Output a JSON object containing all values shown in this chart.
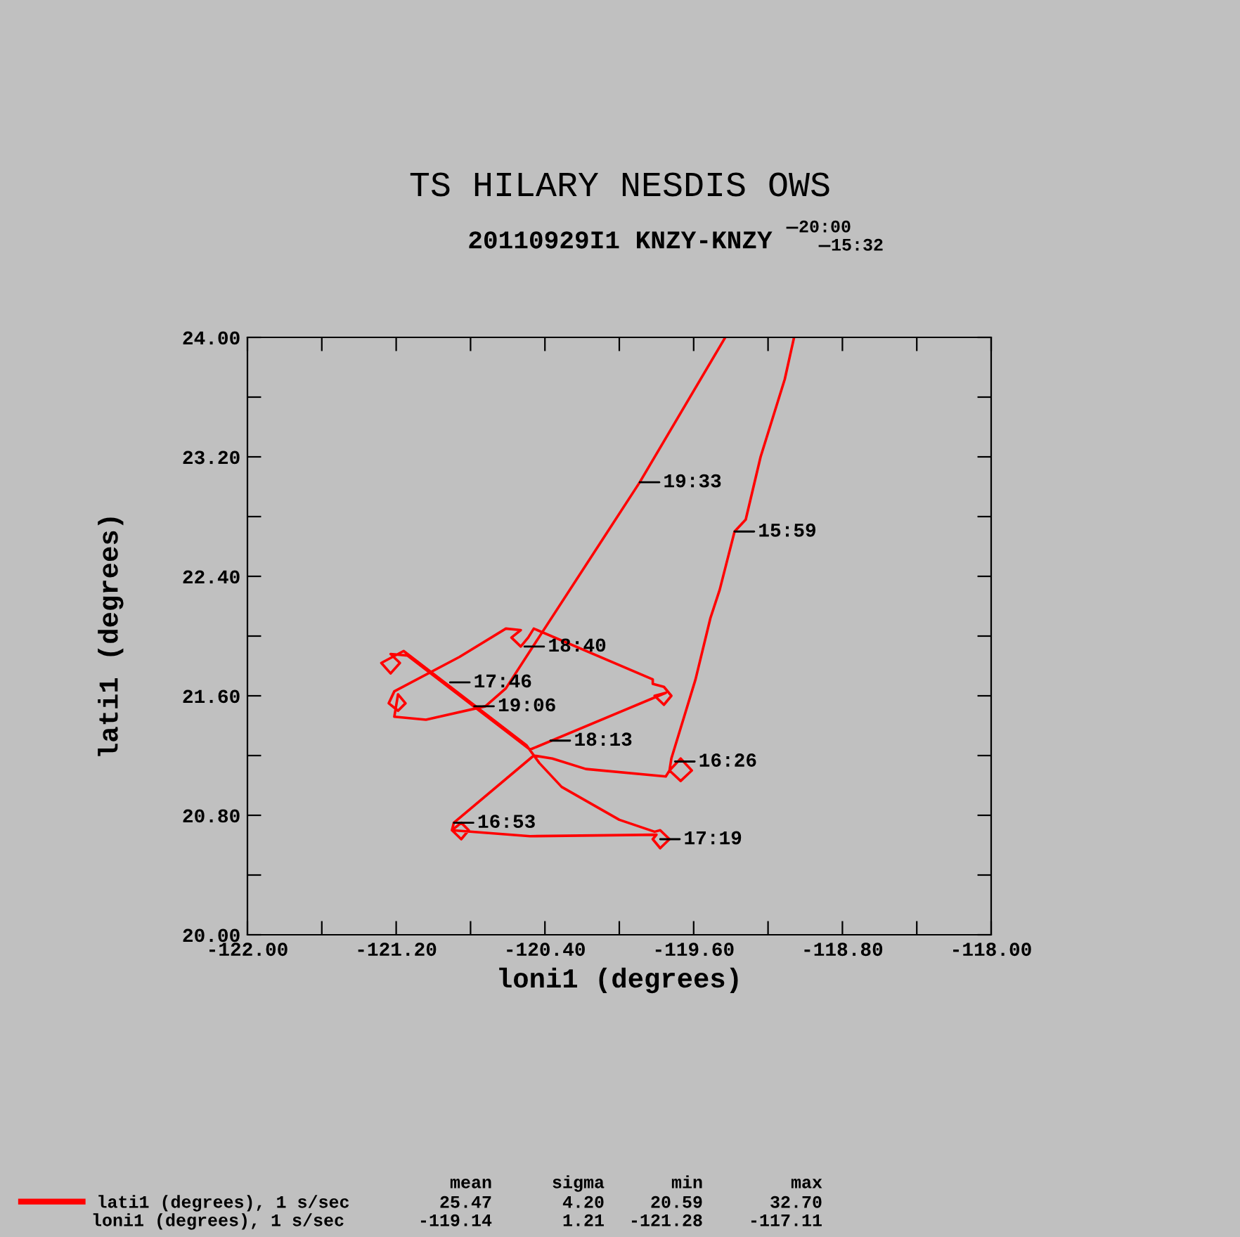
{
  "chart_data": {
    "type": "line",
    "title": "TS HILARY NESDIS OWS",
    "subtitle": "20110929I1 KNZY-KNZY",
    "xlabel": "loni1 (degrees)",
    "ylabel": "lati1 (degrees)",
    "xlim": [
      -122,
      -118
    ],
    "ylim": [
      20,
      24
    ],
    "xticks": [
      {
        "value": -122,
        "label": "-122.00"
      },
      {
        "value": -121.6,
        "label": null
      },
      {
        "value": -121.2,
        "label": "-121.20"
      },
      {
        "value": -120.8,
        "label": null
      },
      {
        "value": -120.4,
        "label": "-120.40"
      },
      {
        "value": -120.0,
        "label": null
      },
      {
        "value": -119.6,
        "label": "-119.60"
      },
      {
        "value": -119.2,
        "label": null
      },
      {
        "value": -118.8,
        "label": "-118.80"
      },
      {
        "value": -118.4,
        "label": null
      },
      {
        "value": -118,
        "label": "-118.00"
      }
    ],
    "yticks": [
      {
        "value": 20,
        "label": "20.00"
      },
      {
        "value": 20.4,
        "label": null
      },
      {
        "value": 20.8,
        "label": "20.80"
      },
      {
        "value": 21.2,
        "label": null
      },
      {
        "value": 21.6,
        "label": "21.60"
      },
      {
        "value": 22.0,
        "label": null
      },
      {
        "value": 22.4,
        "label": "22.40"
      },
      {
        "value": 22.8,
        "label": null
      },
      {
        "value": 23.2,
        "label": "23.20"
      },
      {
        "value": 23.6,
        "label": null
      },
      {
        "value": 24,
        "label": "24.00"
      }
    ],
    "grid": false,
    "legend": "bottom left",
    "marker": "none",
    "line_style": "solid",
    "series": [
      {
        "name": "lati1 (degrees), 1 s/sec",
        "color": "#ff0000",
        "x": [
          -119.06,
          -119.11,
          -119.24,
          -119.32,
          -119.38,
          -119.46,
          -119.51,
          -119.59,
          -119.72,
          -119.73,
          -119.67,
          -119.61,
          -119.67,
          -119.73,
          -119.75,
          -120.18,
          -120.36,
          -120.46,
          -120.89,
          -120.9,
          -120.85,
          -120.81,
          -120.85,
          -120.9,
          -120.48,
          -119.8,
          -119.82,
          -119.78,
          -119.73,
          -119.78,
          -119.81,
          -120.0,
          -120.31,
          -120.43,
          -120.5,
          -121.16,
          -121.28,
          -121.23,
          -121.18,
          -121.23,
          -121.14,
          -120.48,
          -119.75,
          -119.81,
          -119.76,
          -119.72,
          -119.76,
          -119.82,
          -119.82,
          -120.46,
          -120.49,
          -120.53,
          -120.58,
          -120.53,
          -120.61,
          -120.86,
          -121.21,
          -121.24,
          -121.19,
          -121.15,
          -121.19,
          -121.21,
          -121.04,
          -120.72,
          -120.61,
          -120.48,
          -119.89,
          -119.43
        ],
        "values": [
          24.0,
          23.72,
          23.2,
          22.78,
          22.7,
          22.31,
          22.12,
          21.71,
          21.18,
          21.1,
          21.03,
          21.1,
          21.18,
          21.1,
          21.06,
          21.11,
          21.18,
          21.2,
          20.75,
          20.7,
          20.64,
          20.7,
          20.75,
          20.7,
          20.66,
          20.67,
          20.64,
          20.58,
          20.64,
          20.7,
          20.69,
          20.77,
          20.99,
          21.15,
          21.27,
          21.9,
          21.82,
          21.75,
          21.82,
          21.88,
          21.87,
          21.24,
          21.62,
          21.6,
          21.54,
          21.6,
          21.66,
          21.68,
          21.71,
          22.05,
          21.99,
          21.93,
          21.99,
          22.04,
          22.05,
          21.86,
          21.63,
          21.55,
          21.5,
          21.55,
          21.61,
          21.46,
          21.44,
          21.53,
          21.65,
          21.9,
          23.03,
          24.0
        ]
      }
    ],
    "annotations": [
      {
        "text": "15:59",
        "x": -119.38,
        "y": 22.7
      },
      {
        "text": "16:26",
        "x": -119.7,
        "y": 21.16
      },
      {
        "text": "16:53",
        "x": -120.89,
        "y": 20.75
      },
      {
        "text": "17:19",
        "x": -119.78,
        "y": 20.64
      },
      {
        "text": "17:46",
        "x": -120.91,
        "y": 21.69
      },
      {
        "text": "18:13",
        "x": -120.37,
        "y": 21.3
      },
      {
        "text": "18:40",
        "x": -120.51,
        "y": 21.93
      },
      {
        "text": "19:06",
        "x": -120.78,
        "y": 21.53
      },
      {
        "text": "19:33",
        "x": -119.89,
        "y": 23.03
      },
      "20:00",
      "15:32",
      "mean",
      "sigma",
      "min",
      "max",
      "25.47",
      "4.20",
      "20.59",
      "32.70",
      "loni1 (degrees), 1 s/sec",
      "-119.14",
      "1.21",
      "-121.28",
      "-117.11"
    ]
  }
}
